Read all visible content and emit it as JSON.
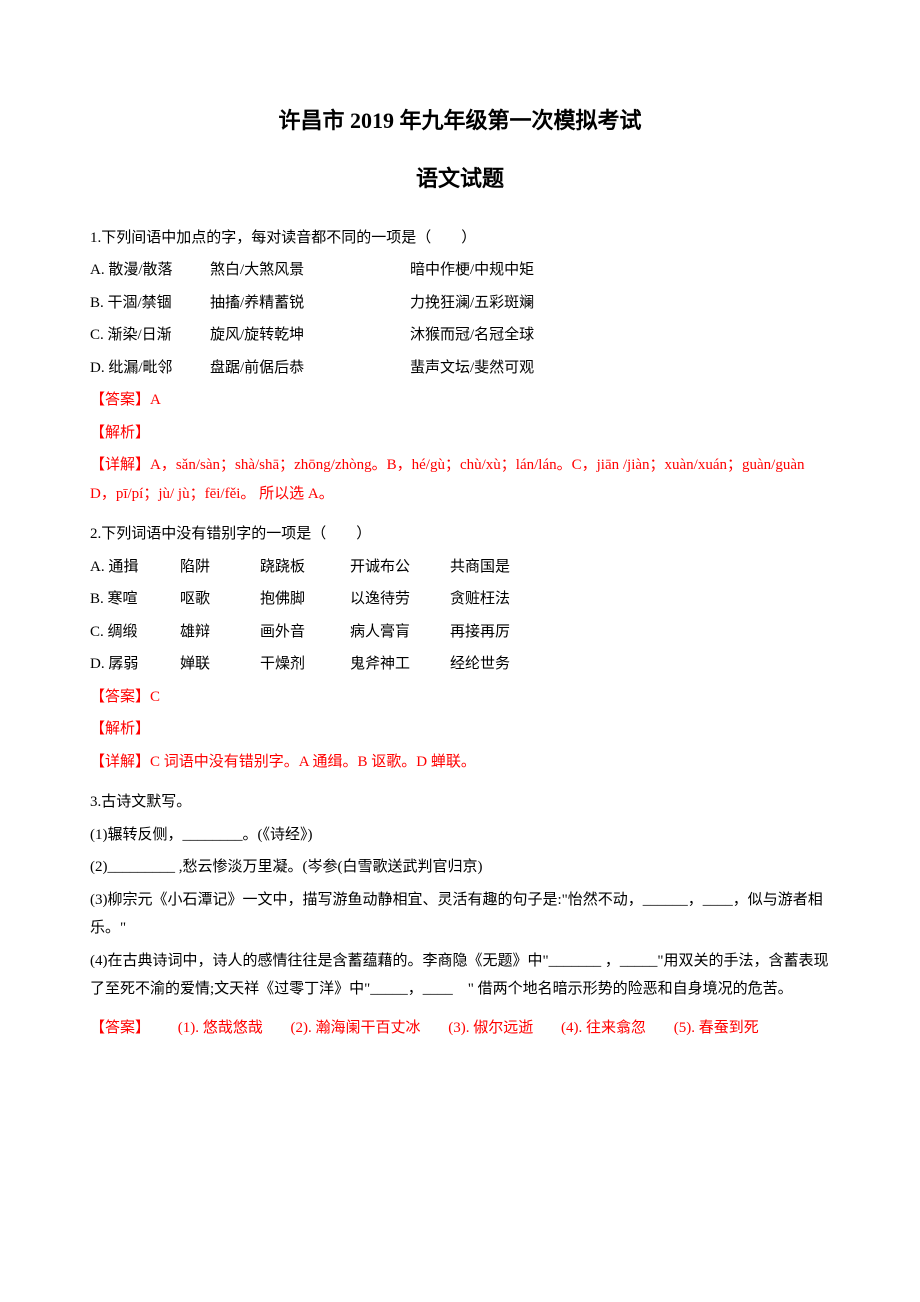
{
  "colors": {
    "text": "#000000",
    "answer": "#ff0000",
    "background": "#ffffff"
  },
  "typography": {
    "body_fontsize": 15,
    "title_fontsize": 22,
    "line_height": 1.9,
    "font_family": "SimSun"
  },
  "title": "许昌市 2019 年九年级第一次模拟考试",
  "subtitle": "语文试题",
  "q1": {
    "stem": "1.下列间语中加点的字，每对读音都不同的一项是（　　）",
    "options": {
      "A": [
        "A. 散漫/散落",
        "煞白/大煞风景",
        "暗中作梗/中规中矩"
      ],
      "B": [
        "B. 干涸/禁锢",
        "抽搐/养精蓄锐",
        "力挽狂澜/五彩斑斓"
      ],
      "C": [
        "C. 渐染/日渐",
        "旋风/旋转乾坤",
        "沐猴而冠/名冠全球"
      ],
      "D": [
        "D. 纰漏/毗邻",
        "盘踞/前倨后恭",
        "蜚声文坛/斐然可观"
      ]
    },
    "answer_label": "【答案】A",
    "analysis_label": "【解析】",
    "detail": "【详解】A，sǎn/sàn；shà/shā；zhōng/zhòng。B，hé/gù；chù/xù；lán/lán。C，jiān /jiàn；xuàn/xuán；guàn/guàn  D，pī/pí；jù/ jù；fēi/fěi。 所以选 A。"
  },
  "q2": {
    "stem": "2.下列词语中没有错别字的一项是（　　）",
    "options": {
      "A": [
        "A. 通揖",
        "陷阱",
        "跷跷板",
        "开诚布公",
        "共商国是"
      ],
      "B": [
        "B. 寒喧",
        "呕歌",
        "抱佛脚",
        "以逸待劳",
        "贪赃枉法"
      ],
      "C": [
        "C. 绸缎",
        "雄辩",
        "画外音",
        "病人膏肓",
        "再接再厉"
      ],
      "D": [
        "D. 孱弱",
        "婵联",
        "干燥剂",
        "鬼斧神工",
        "经纶世务"
      ]
    },
    "answer_label": "【答案】C",
    "analysis_label": "【解析】",
    "detail": "【详解】C 词语中没有错别字。A 通缉。B 讴歌。D 蝉联。"
  },
  "q3": {
    "stem": "3.古诗文默写。",
    "items": {
      "1": "(1)辗转反侧，________。(《诗经》)",
      "2": "(2)_________ ,愁云惨淡万里凝。(岑参(白雪歌送武判官归京)",
      "3": "(3)柳宗元《小石潭记》一文中，描写游鱼动静相宜、灵活有趣的句子是:\"怡然不动，______，____，似与游者相乐。\"",
      "4": "(4)在古典诗词中，诗人的感情往往是含蓄蕴藉的。李商隐《无题》中\"_______ ，_____\"用双关的手法，含蓄表现了至死不渝的爱情;文天祥《过零丁洋》中\"_____，____　\" 借两个地名暗示形势的险恶和自身境况的危苦。"
    },
    "answer_label": "【答案】",
    "answers": {
      "1": "(1). 悠哉悠哉",
      "2": "(2). 瀚海阑干百丈冰",
      "3": "(3). 俶尔远逝",
      "4": "(4). 往来翕忽",
      "5": "(5). 春蚕到死"
    }
  }
}
